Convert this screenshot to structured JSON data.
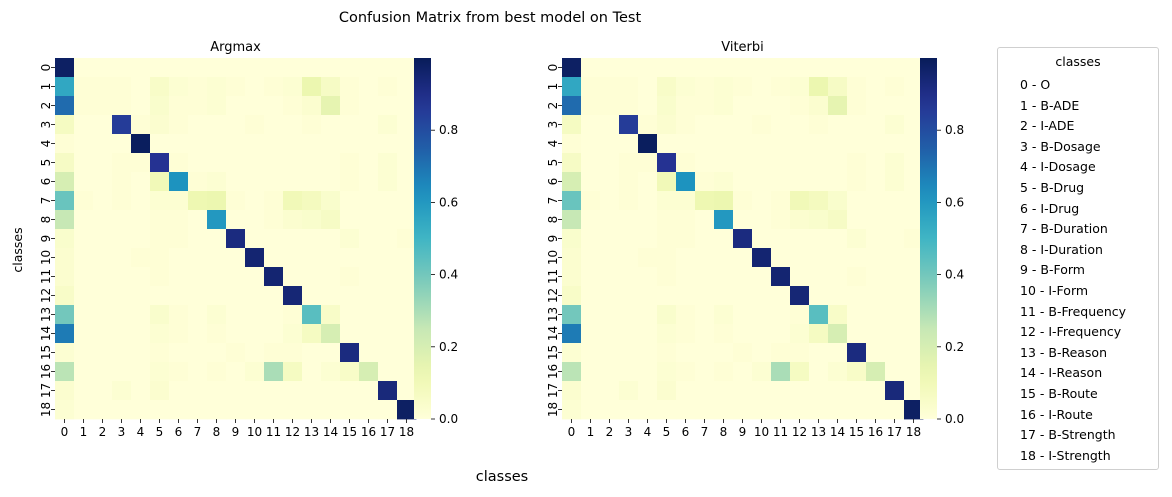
{
  "figure": {
    "suptitle": "Confusion Matrix from best model on Test",
    "xlabel": "classes",
    "ylabel": "classes"
  },
  "colormap": "YlGnBu",
  "legend": {
    "title": "classes",
    "items": [
      "0 - O",
      "1 - B-ADE",
      "2 - I-ADE",
      "3 - B-Dosage",
      "4 - I-Dosage",
      "5 - B-Drug",
      "6 - I-Drug",
      "7 - B-Duration",
      "8 - I-Duration",
      "9 - B-Form",
      "10 - I-Form",
      "11 - B-Frequency",
      "12 - I-Frequency",
      "13 - B-Reason",
      "14 - I-Reason",
      "15 - B-Route",
      "16 - I-Route",
      "17 - B-Strength",
      "18 - I-Strength"
    ]
  },
  "chart_data": [
    {
      "type": "heatmap",
      "title": "Argmax",
      "xlabel": "classes",
      "ylabel": "classes",
      "x_ticks": [
        "0",
        "1",
        "2",
        "3",
        "4",
        "5",
        "6",
        "7",
        "8",
        "9",
        "10",
        "11",
        "12",
        "13",
        "14",
        "15",
        "16",
        "17",
        "18"
      ],
      "y_ticks": [
        "0",
        "1",
        "2",
        "3",
        "4",
        "5",
        "6",
        "7",
        "8",
        "9",
        "10",
        "11",
        "12",
        "13",
        "14",
        "15",
        "16",
        "17",
        "18"
      ],
      "colorbar": {
        "range": [
          0,
          1
        ],
        "ticks": [
          0.0,
          0.2,
          0.4,
          0.6,
          0.8
        ],
        "tick_labels": [
          "0.0",
          "0.2",
          "0.4",
          "0.6",
          "0.8"
        ]
      },
      "matrix": [
        [
          0.98,
          0,
          0,
          0,
          0,
          0,
          0,
          0,
          0,
          0,
          0,
          0,
          0,
          0,
          0,
          0,
          0,
          0,
          0
        ],
        [
          0.55,
          0.01,
          0.01,
          0.01,
          0,
          0.05,
          0.02,
          0.01,
          0.02,
          0.01,
          0,
          0.01,
          0.02,
          0.13,
          0.06,
          0.01,
          0,
          0.01,
          0
        ],
        [
          0.72,
          0.01,
          0.01,
          0.01,
          0,
          0.04,
          0.01,
          0.01,
          0.02,
          0,
          0,
          0,
          0.01,
          0.03,
          0.15,
          0.01,
          0,
          0,
          0
        ],
        [
          0.07,
          0,
          0,
          0.85,
          0.01,
          0.03,
          0.01,
          0,
          0,
          0,
          0.01,
          0,
          0,
          0.01,
          0,
          0,
          0,
          0.02,
          0
        ],
        [
          0.01,
          0,
          0,
          0,
          0.99,
          0,
          0,
          0,
          0,
          0,
          0,
          0,
          0,
          0,
          0,
          0,
          0,
          0,
          0
        ],
        [
          0.06,
          0,
          0,
          0.01,
          0.01,
          0.88,
          0.01,
          0,
          0,
          0,
          0,
          0,
          0,
          0,
          0,
          0.01,
          0,
          0.02,
          0
        ],
        [
          0.2,
          0,
          0,
          0.01,
          0,
          0.1,
          0.62,
          0.01,
          0.02,
          0,
          0,
          0,
          0,
          0,
          0,
          0.01,
          0,
          0.02,
          0
        ],
        [
          0.42,
          0.01,
          0,
          0.01,
          0,
          0.02,
          0.02,
          0.12,
          0.13,
          0.01,
          0,
          0.01,
          0.1,
          0.08,
          0.04,
          0,
          0,
          0,
          0
        ],
        [
          0.25,
          0,
          0,
          0,
          0,
          0.01,
          0.01,
          0,
          0.6,
          0,
          0,
          0.01,
          0.03,
          0.04,
          0.06,
          0,
          0,
          0,
          0
        ],
        [
          0.04,
          0,
          0,
          0,
          0,
          0.01,
          0.01,
          0,
          0,
          0.92,
          0,
          0,
          0,
          0,
          0,
          0.02,
          0,
          0,
          0.01
        ],
        [
          0.03,
          0,
          0,
          0,
          0.01,
          0.01,
          0,
          0,
          0,
          0,
          0.95,
          0,
          0,
          0,
          0,
          0,
          0,
          0,
          0
        ],
        [
          0.03,
          0,
          0,
          0,
          0,
          0.01,
          0,
          0,
          0,
          0,
          0,
          0.95,
          0,
          0,
          0,
          0.01,
          0,
          0,
          0
        ],
        [
          0.05,
          0,
          0,
          0,
          0,
          0,
          0,
          0,
          0,
          0,
          0,
          0,
          0.94,
          0,
          0,
          0,
          0,
          0,
          0
        ],
        [
          0.4,
          0,
          0,
          0,
          0,
          0.04,
          0.01,
          0,
          0.02,
          0,
          0,
          0,
          0.01,
          0.45,
          0.05,
          0,
          0,
          0,
          0
        ],
        [
          0.68,
          0,
          0,
          0,
          0,
          0.02,
          0.01,
          0,
          0.01,
          0,
          0,
          0,
          0.02,
          0.07,
          0.2,
          0,
          0,
          0,
          0
        ],
        [
          0.02,
          0,
          0,
          0,
          0,
          0.01,
          0,
          0,
          0,
          0.01,
          0,
          0.01,
          0.01,
          0,
          0,
          0.92,
          0,
          0,
          0
        ],
        [
          0.27,
          0,
          0,
          0,
          0,
          0.02,
          0.01,
          0,
          0.01,
          0,
          0.02,
          0.3,
          0.07,
          0,
          0.02,
          0.05,
          0.2,
          0,
          0
        ],
        [
          0.03,
          0,
          0,
          0.02,
          0,
          0.03,
          0,
          0,
          0,
          0,
          0,
          0,
          0,
          0,
          0,
          0,
          0,
          0.93,
          0
        ],
        [
          0.02,
          0,
          0,
          0,
          0,
          0,
          0,
          0,
          0,
          0,
          0,
          0,
          0,
          0,
          0,
          0,
          0,
          0,
          0.98
        ]
      ]
    },
    {
      "type": "heatmap",
      "title": "Viterbi",
      "xlabel": "classes",
      "ylabel": "",
      "x_ticks": [
        "0",
        "1",
        "2",
        "3",
        "4",
        "5",
        "6",
        "7",
        "8",
        "9",
        "10",
        "11",
        "12",
        "13",
        "14",
        "15",
        "16",
        "17",
        "18"
      ],
      "y_ticks": [
        "0",
        "1",
        "2",
        "3",
        "4",
        "5",
        "6",
        "7",
        "8",
        "9",
        "10",
        "11",
        "12",
        "13",
        "14",
        "15",
        "16",
        "17",
        "18"
      ],
      "colorbar": {
        "range": [
          0,
          1
        ],
        "ticks": [
          0.0,
          0.2,
          0.4,
          0.6,
          0.8
        ],
        "tick_labels": [
          "0.0",
          "0.2",
          "0.4",
          "0.6",
          "0.8"
        ]
      },
      "matrix": [
        [
          0.98,
          0,
          0,
          0,
          0,
          0,
          0,
          0,
          0,
          0,
          0,
          0,
          0,
          0,
          0,
          0,
          0,
          0,
          0
        ],
        [
          0.55,
          0.01,
          0.01,
          0.01,
          0,
          0.05,
          0.02,
          0.01,
          0.02,
          0.01,
          0,
          0.01,
          0.02,
          0.13,
          0.06,
          0.01,
          0,
          0.01,
          0
        ],
        [
          0.72,
          0.01,
          0.01,
          0.01,
          0,
          0.04,
          0.01,
          0.01,
          0.02,
          0,
          0,
          0,
          0.01,
          0.03,
          0.15,
          0.01,
          0,
          0,
          0
        ],
        [
          0.07,
          0,
          0,
          0.85,
          0.01,
          0.03,
          0.01,
          0,
          0,
          0,
          0.01,
          0,
          0,
          0.01,
          0,
          0,
          0,
          0.02,
          0
        ],
        [
          0.01,
          0,
          0,
          0,
          0.99,
          0,
          0,
          0,
          0,
          0,
          0,
          0,
          0,
          0,
          0,
          0,
          0,
          0,
          0
        ],
        [
          0.06,
          0,
          0,
          0.01,
          0.01,
          0.88,
          0.01,
          0,
          0,
          0,
          0,
          0,
          0,
          0,
          0,
          0.01,
          0,
          0.02,
          0
        ],
        [
          0.2,
          0,
          0,
          0.01,
          0,
          0.1,
          0.62,
          0.01,
          0.02,
          0,
          0,
          0,
          0,
          0,
          0,
          0.01,
          0,
          0.02,
          0
        ],
        [
          0.42,
          0.01,
          0,
          0.01,
          0,
          0.02,
          0.02,
          0.12,
          0.13,
          0.01,
          0,
          0.01,
          0.1,
          0.08,
          0.04,
          0,
          0,
          0,
          0
        ],
        [
          0.25,
          0,
          0,
          0,
          0,
          0.01,
          0.01,
          0,
          0.6,
          0,
          0,
          0.01,
          0.03,
          0.04,
          0.06,
          0,
          0,
          0,
          0
        ],
        [
          0.04,
          0,
          0,
          0,
          0,
          0.01,
          0.01,
          0,
          0,
          0.92,
          0,
          0,
          0,
          0,
          0,
          0.02,
          0,
          0,
          0.01
        ],
        [
          0.03,
          0,
          0,
          0,
          0.01,
          0.01,
          0,
          0,
          0,
          0,
          0.95,
          0,
          0,
          0,
          0,
          0,
          0,
          0,
          0
        ],
        [
          0.03,
          0,
          0,
          0,
          0,
          0.01,
          0,
          0,
          0,
          0,
          0,
          0.95,
          0,
          0,
          0,
          0.01,
          0,
          0,
          0
        ],
        [
          0.05,
          0,
          0,
          0,
          0,
          0,
          0,
          0,
          0,
          0,
          0,
          0,
          0.94,
          0,
          0,
          0,
          0,
          0,
          0
        ],
        [
          0.4,
          0,
          0,
          0,
          0,
          0.04,
          0.01,
          0,
          0.02,
          0,
          0,
          0,
          0.01,
          0.45,
          0.05,
          0,
          0,
          0,
          0
        ],
        [
          0.68,
          0,
          0,
          0,
          0,
          0.02,
          0.01,
          0,
          0.01,
          0,
          0,
          0,
          0.02,
          0.07,
          0.2,
          0,
          0,
          0,
          0
        ],
        [
          0.02,
          0,
          0,
          0,
          0,
          0.01,
          0,
          0,
          0,
          0.01,
          0,
          0.01,
          0.01,
          0,
          0,
          0.92,
          0,
          0,
          0
        ],
        [
          0.27,
          0,
          0,
          0,
          0,
          0.02,
          0.01,
          0,
          0.01,
          0,
          0.02,
          0.3,
          0.07,
          0,
          0.02,
          0.05,
          0.2,
          0,
          0
        ],
        [
          0.03,
          0,
          0,
          0.02,
          0,
          0.03,
          0,
          0,
          0,
          0,
          0,
          0,
          0,
          0,
          0,
          0,
          0,
          0.93,
          0
        ],
        [
          0.02,
          0,
          0,
          0,
          0,
          0,
          0,
          0,
          0,
          0,
          0,
          0,
          0,
          0,
          0,
          0,
          0,
          0,
          0.98
        ]
      ]
    }
  ]
}
